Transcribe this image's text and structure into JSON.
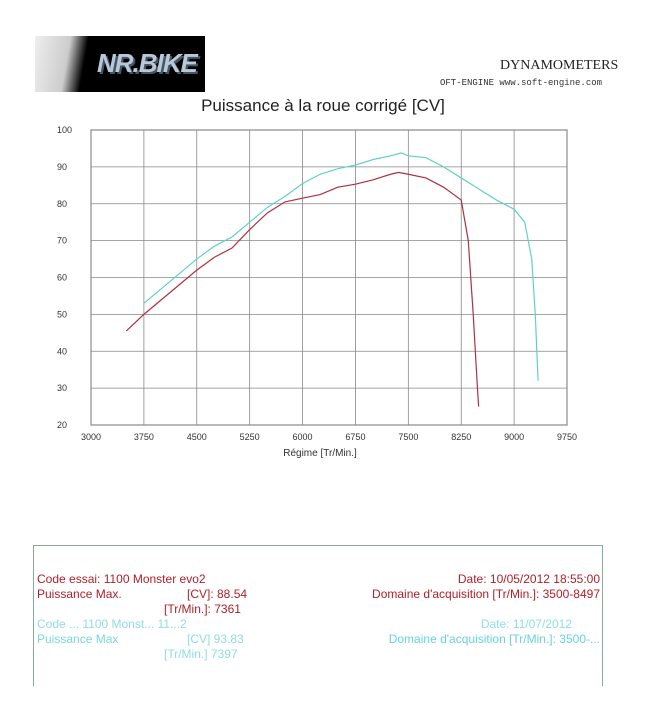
{
  "logos": {
    "left": "NR.BIKE",
    "right_brand": "DYNAMOMETERS",
    "right_sub": "OFT-ENGINE",
    "right_url": "www.soft-engine.com"
  },
  "chart_data": {
    "type": "line",
    "title": "Puissance à la roue corrigé [CV]",
    "xlabel": "Régime [Tr/Min.]",
    "ylabel": "",
    "xlim": [
      3000,
      9750
    ],
    "ylim": [
      20,
      100
    ],
    "xticks": [
      3000,
      3750,
      4500,
      5250,
      6000,
      6750,
      7500,
      8250,
      9000,
      9750
    ],
    "yticks": [
      20,
      30,
      40,
      50,
      60,
      70,
      80,
      90,
      100
    ],
    "grid": true,
    "series": [
      {
        "name": "1100 Monster evo2 (10/05/2012)",
        "color": "#b03040",
        "x": [
          3500,
          3750,
          4000,
          4250,
          4500,
          4750,
          5000,
          5250,
          5500,
          5750,
          6000,
          6250,
          6500,
          6750,
          7000,
          7250,
          7361,
          7500,
          7750,
          8000,
          8250,
          8350,
          8420,
          8480,
          8497
        ],
        "y": [
          45.5,
          50,
          54,
          58,
          62,
          65.5,
          68,
          73,
          77.5,
          80.5,
          81.5,
          82.5,
          84.5,
          85.3,
          86.5,
          88,
          88.5,
          88,
          87,
          84.5,
          81,
          70,
          50,
          30,
          25
        ]
      },
      {
        "name": "1100 Monster (11/07/2012)",
        "color": "#60d0c8",
        "x": [
          3750,
          4000,
          4250,
          4500,
          4750,
          5000,
          5250,
          5500,
          5750,
          6000,
          6250,
          6500,
          6750,
          7000,
          7250,
          7397,
          7500,
          7750,
          8000,
          8250,
          8500,
          8750,
          9000,
          9150,
          9250,
          9300,
          9340
        ],
        "y": [
          53,
          57,
          61,
          65,
          68.5,
          71,
          75,
          79,
          82,
          85.5,
          88,
          89.5,
          90.5,
          92,
          93,
          93.8,
          93,
          92.5,
          90,
          87,
          84,
          81,
          78.5,
          75,
          65,
          50,
          32
        ]
      }
    ]
  },
  "info": {
    "red": {
      "code": "Code essai: 1100 Monster evo2",
      "pmax_label": "Puissance Max.",
      "cv": "[CV]: 88.54",
      "rpm": "[Tr/Min.]: 7361",
      "date": "Date: 10/05/2012 18:55:00",
      "domain": "Domaine d'acquisition [Tr/Min.]: 3500-8497"
    },
    "cyan": {
      "code": "Code ... 1100 Monst... 11...2",
      "pmax_label": "Puissance Max",
      "cv": "[CV] 93.83",
      "rpm": "[Tr/Min.] 7397",
      "date": "Date: 11/07/2012",
      "domain": "Domaine d'acquisition [Tr/Min.]: 3500-..."
    }
  }
}
